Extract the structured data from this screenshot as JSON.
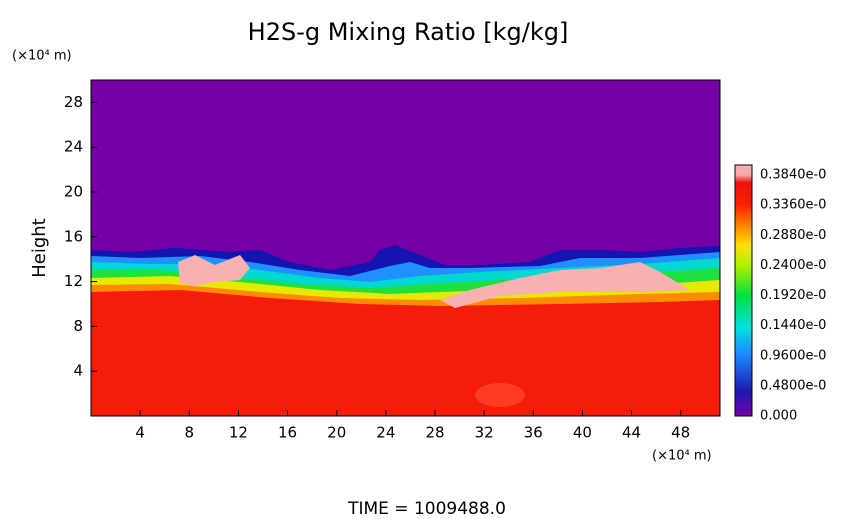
{
  "chart_data": {
    "type": "heatmap",
    "title": "H2S-g Mixing Ratio [kg/kg]",
    "y_unit": "(×10⁴ m)",
    "x_unit": "(×10⁴ m)",
    "ylabel": "Height",
    "footer": "TIME = 1009488.0",
    "xlim": [
      0,
      51.2
    ],
    "xticks": [
      4,
      8,
      12,
      16,
      20,
      24,
      28,
      32,
      36,
      40,
      44,
      48
    ],
    "ylim": [
      0,
      30
    ],
    "yticks": [
      4,
      8,
      12,
      16,
      20,
      24,
      28
    ],
    "colorbar_labels": [
      "0.000",
      "0.4800e-0",
      "0.9600e-0",
      "0.1440e-0",
      "0.1920e-0",
      "0.2400e-0",
      "0.2880e-0",
      "0.3360e-0",
      "0.3840e-0"
    ]
  }
}
